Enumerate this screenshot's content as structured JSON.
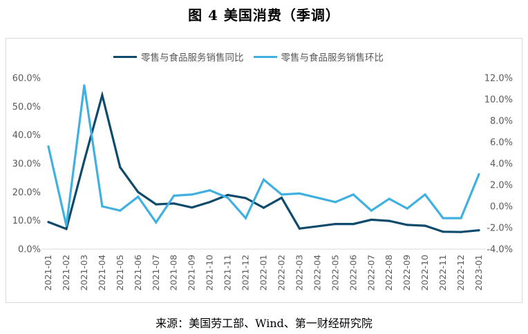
{
  "title": "图 4 美国消费（季调）",
  "source": "来源：美国劳工部、Wind、第一财经研究院",
  "colors": {
    "yoy": "#0e4a6b",
    "mom": "#3fb0e0",
    "axis": "#d9d9d9",
    "text": "#595959"
  },
  "chart_data": {
    "type": "line",
    "categories": [
      "2021-01",
      "2021-02",
      "2021-03",
      "2021-04",
      "2021-05",
      "2021-06",
      "2021-07",
      "2021-08",
      "2021-09",
      "2021-10",
      "2021-11",
      "2021-12",
      "2022-01",
      "2022-02",
      "2022-03",
      "2022-04",
      "2022-05",
      "2022-06",
      "2022-07",
      "2022-08",
      "2022-09",
      "2022-10",
      "2022-11",
      "2022-12",
      "2023-01"
    ],
    "series": [
      {
        "name": "零售与食品服务销售同比",
        "axis": "left",
        "values": [
          9.5,
          7.1,
          31.0,
          54.0,
          28.7,
          20.0,
          15.7,
          16.0,
          14.6,
          16.5,
          19.0,
          17.9,
          14.5,
          18.0,
          7.2,
          8.0,
          8.8,
          8.8,
          10.3,
          9.9,
          8.5,
          8.2,
          6.1,
          6.0,
          6.6
        ]
      },
      {
        "name": "零售与食品服务销售环比",
        "axis": "right",
        "values": [
          5.6,
          -1.8,
          11.3,
          0.0,
          -0.4,
          0.9,
          -1.5,
          1.0,
          1.1,
          1.5,
          0.8,
          -1.1,
          2.5,
          1.1,
          1.2,
          0.8,
          0.4,
          1.1,
          -0.4,
          0.7,
          -0.2,
          1.1,
          -1.1,
          -1.1,
          3.0
        ]
      }
    ],
    "y_left": {
      "min": 0,
      "max": 60,
      "ticks": [
        "0.0%",
        "10.0%",
        "20.0%",
        "30.0%",
        "40.0%",
        "50.0%",
        "60.0%"
      ]
    },
    "y_right": {
      "min": -4,
      "max": 12,
      "ticks": [
        "-4.0%",
        "-2.0%",
        "0.0%",
        "2.0%",
        "4.0%",
        "6.0%",
        "8.0%",
        "10.0%",
        "12.0%"
      ]
    },
    "grid": false,
    "legend": "top-center"
  }
}
